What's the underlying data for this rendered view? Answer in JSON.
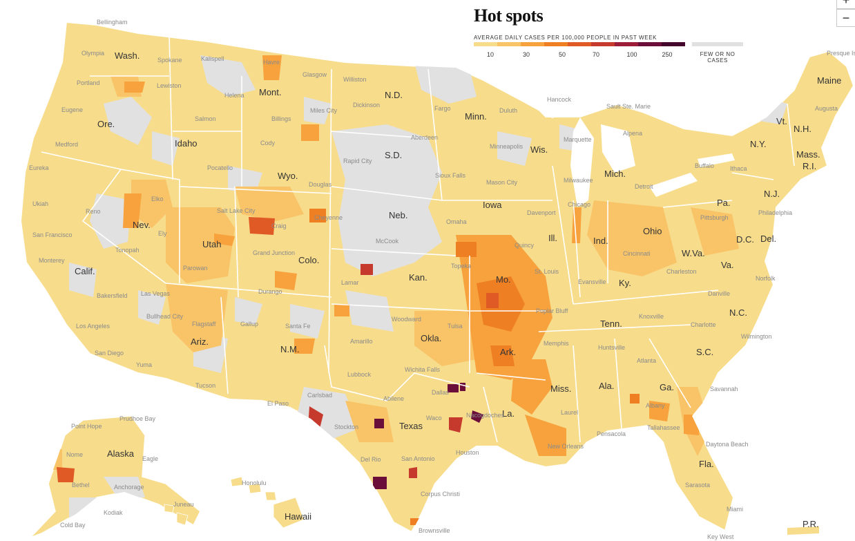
{
  "title": "Hot spots",
  "legend": {
    "heading": "AVERAGE DAILY CASES PER 100,000 PEOPLE IN PAST WEEK",
    "ticks": [
      "10",
      "30",
      "50",
      "70",
      "100",
      "250"
    ],
    "colors": [
      "#f7dc8c",
      "#f9c468",
      "#f7a23c",
      "#ee7f23",
      "#e05a26",
      "#c63a2e",
      "#9c1d3a",
      "#6b0f3a",
      "#43072e"
    ],
    "no_cases_label": "FEW OR NO CASES",
    "no_cases_color": "#e1e1e1"
  },
  "zoom": {
    "in_label": "+",
    "out_label": "−"
  },
  "states": [
    "Wash.",
    "Ore.",
    "Calif.",
    "Idaho",
    "Nev.",
    "Mont.",
    "Wyo.",
    "Utah",
    "Colo.",
    "Ariz.",
    "N.M.",
    "N.D.",
    "S.D.",
    "Neb.",
    "Kan.",
    "Okla.",
    "Texas",
    "Minn.",
    "Iowa",
    "Mo.",
    "Ark.",
    "La.",
    "Wis.",
    "Ill.",
    "Mich.",
    "Ind.",
    "Ohio",
    "Ky.",
    "Tenn.",
    "Miss.",
    "Ala.",
    "Ga.",
    "Fla.",
    "S.C.",
    "N.C.",
    "Va.",
    "W.Va.",
    "Pa.",
    "N.Y.",
    "Vt.",
    "N.H.",
    "Maine",
    "Mass.",
    "R.I.",
    "N.J.",
    "D.C.",
    "Del.",
    "Alaska",
    "Hawaii",
    "P.R."
  ],
  "cities": [
    "Bellingham",
    "Olympia",
    "Spokane",
    "Kalispell",
    "Havre",
    "Glasgow",
    "Williston",
    "Portland",
    "Lewiston",
    "Helena",
    "Miles City",
    "Dickinson",
    "Fargo",
    "Duluth",
    "Hancock",
    "Sault Ste. Marie",
    "Presque Isle",
    "Eugene",
    "Salmon",
    "Billings",
    "Aberdeen",
    "Minneapolis",
    "Marquette",
    "Alpena",
    "Augusta",
    "Medford",
    "Cody",
    "Rapid City",
    "Eureka",
    "Pocatello",
    "Sioux Falls",
    "Mason City",
    "Milwaukee",
    "Detroit",
    "Buffalo",
    "Ithaca",
    "Elko",
    "Douglas",
    "Reno",
    "Ukiah",
    "Salt Lake City",
    "Cheyenne",
    "Omaha",
    "Davenport",
    "Chicago",
    "Pittsburgh",
    "Philadelphia",
    "Ely",
    "Craig",
    "San Francisco",
    "McCook",
    "Topeka",
    "Quincy",
    "Cincinnati",
    "Monterey",
    "Tonopah",
    "Grand Junction",
    "Parowan",
    "Durango",
    "Lamar",
    "St. Louis",
    "Evansville",
    "Charleston",
    "Norfolk",
    "Las Vegas",
    "Bakersfield",
    "Poplar Bluff",
    "Danville",
    "Bullhead City",
    "Flagstaff",
    "Gallup",
    "Santa Fe",
    "Woodward",
    "Tulsa",
    "Knoxville",
    "Charlotte",
    "Los Angeles",
    "Amarillo",
    "Memphis",
    "Wilmington",
    "Huntsville",
    "San Diego",
    "Yuma",
    "Atlanta",
    "Lubbock",
    "Wichita Falls",
    "Tucson",
    "Carlsbad",
    "Dallas",
    "Savannah",
    "El Paso",
    "Abilene",
    "Waco",
    "Nacogdoches",
    "Laurel",
    "Albany",
    "Tallahassee",
    "Stockton",
    "New Orleans",
    "Pensacola",
    "Daytona Beach",
    "Houston",
    "Del Rio",
    "San Antonio",
    "Corpus Christi",
    "Sarasota",
    "Miami",
    "Brownsville",
    "Key West",
    "Prudhoe Bay",
    "Point Hope",
    "Nome",
    "Eagle",
    "Bethel",
    "Anchorage",
    "Juneau",
    "Kodiak",
    "Cold Bay",
    "Honolulu"
  ]
}
